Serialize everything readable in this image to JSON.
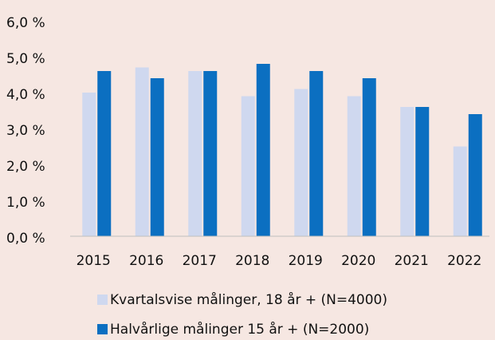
{
  "chart_data": {
    "type": "bar",
    "categories": [
      "2015",
      "2016",
      "2017",
      "2018",
      "2019",
      "2020",
      "2021",
      "2022"
    ],
    "series": [
      {
        "name": "Kvartalsvise målinger, 18 år + (N=4000)",
        "color": "#cfd8ef",
        "values": [
          4.0,
          4.7,
          4.6,
          3.9,
          4.1,
          3.9,
          3.6,
          2.5
        ]
      },
      {
        "name": "Halvårlige målinger 15 år + (N=2000)",
        "color": "#0b6fc1",
        "values": [
          4.6,
          4.4,
          4.6,
          4.8,
          4.6,
          4.4,
          3.6,
          3.4
        ]
      }
    ],
    "ylim": [
      0,
      6
    ],
    "yticks": [
      {
        "value": 0,
        "label": "0,0 %"
      },
      {
        "value": 1,
        "label": "1,0 %"
      },
      {
        "value": 2,
        "label": "2,0 %"
      },
      {
        "value": 3,
        "label": "3,0 %"
      },
      {
        "value": 4,
        "label": "4,0 %"
      },
      {
        "value": 5,
        "label": "5,0 %"
      },
      {
        "value": 6,
        "label": "6,0 %"
      }
    ],
    "grid": false,
    "legend": "bottom"
  }
}
